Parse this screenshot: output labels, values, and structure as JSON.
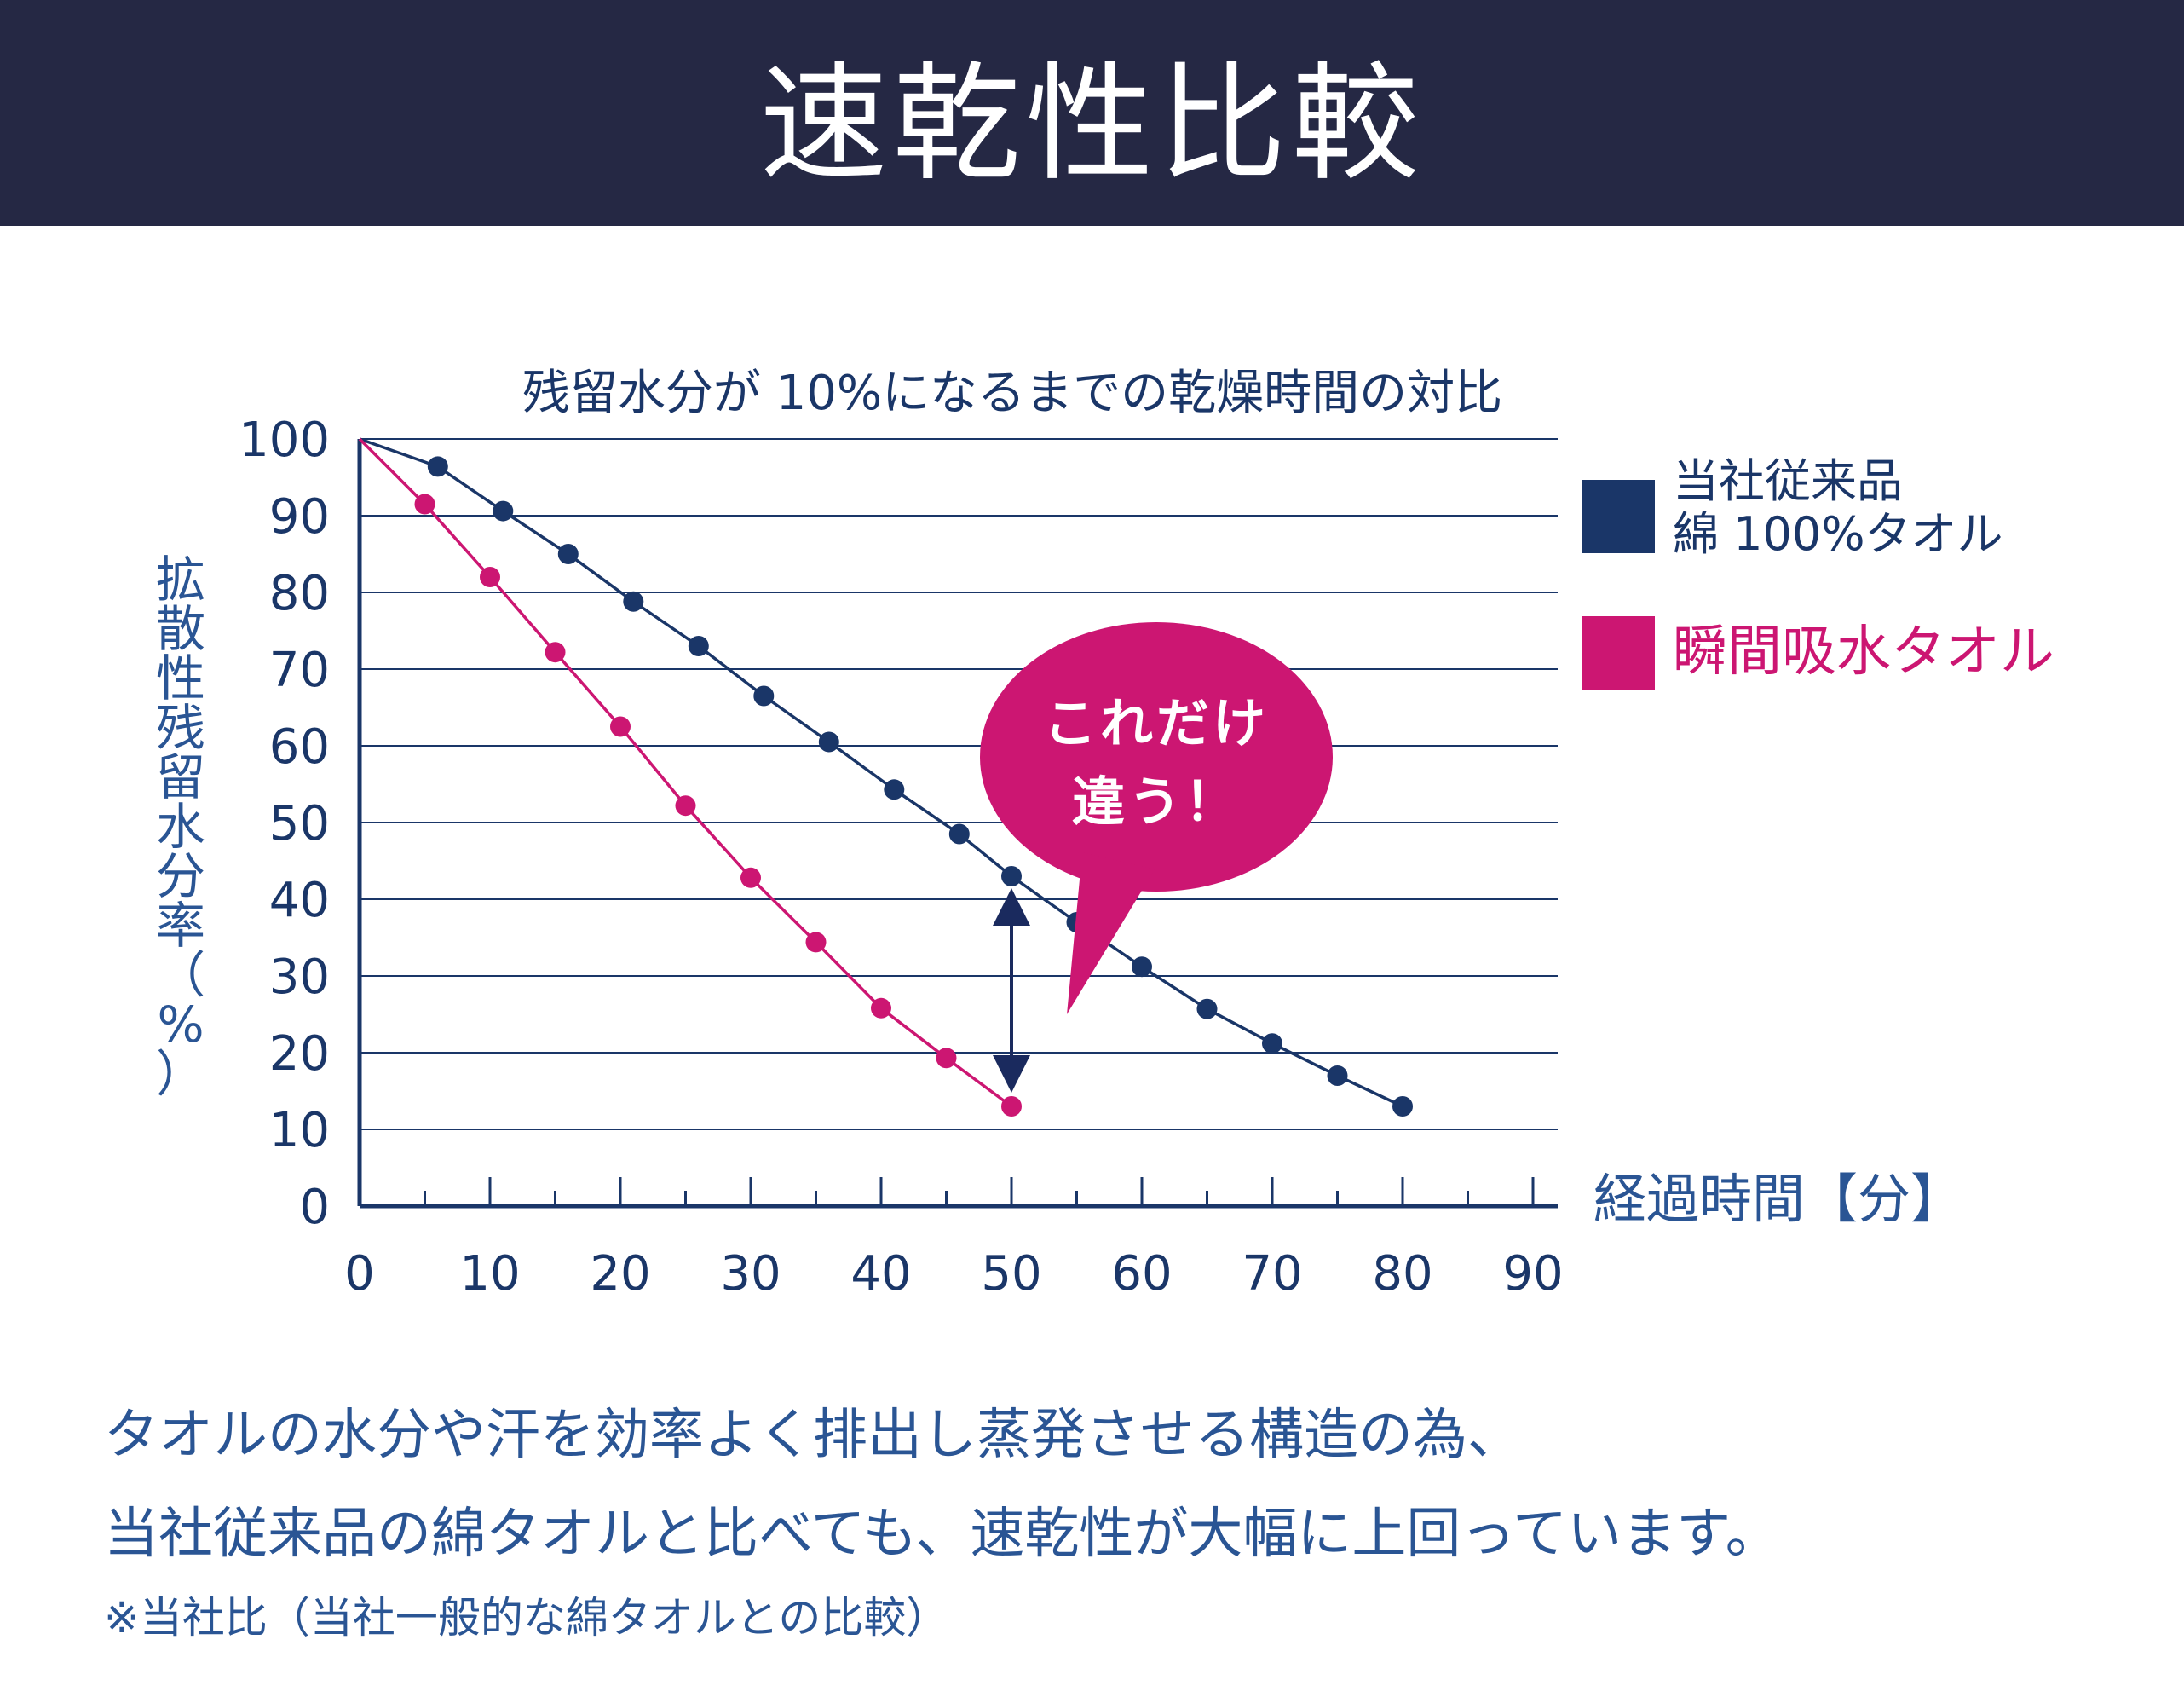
{
  "header": {
    "title": "速乾性比較"
  },
  "chart_data": {
    "type": "line",
    "title": "残留水分が 10%になるまでの乾燥時間の対比",
    "xlabel": "経過時間【分】",
    "ylabel": "拡散性残留水分率（%）",
    "xlim": [
      0,
      90
    ],
    "ylim": [
      0,
      100
    ],
    "x_ticks": [
      0,
      10,
      20,
      30,
      40,
      50,
      60,
      70,
      80,
      90
    ],
    "y_ticks": [
      0,
      10,
      20,
      30,
      40,
      50,
      60,
      70,
      80,
      90,
      100
    ],
    "grid": true,
    "legend_position": "right",
    "series": [
      {
        "name": "当社従来品 綿 100%タオル",
        "legend_lines": [
          "当社従来品",
          "綿 100%タオル"
        ],
        "color": "#1a3668",
        "x": [
          0,
          6,
          11,
          16,
          21,
          26,
          31,
          36,
          41,
          46,
          50,
          55,
          60,
          65,
          70,
          75,
          80
        ],
        "y": [
          100,
          96.4,
          90.6,
          85,
          78.8,
          73,
          66.5,
          60.5,
          54.3,
          48.5,
          43,
          37,
          31.2,
          25.7,
          21.2,
          17,
          13
        ]
      },
      {
        "name": "瞬間吸水タオル",
        "legend_lines": [
          "瞬間吸水タオル"
        ],
        "color": "#cc1672",
        "x": [
          0,
          5,
          10,
          15,
          20,
          25,
          30,
          35,
          40,
          45,
          50
        ],
        "y": [
          100,
          91.5,
          82,
          72.2,
          62.5,
          52.2,
          42.8,
          34.4,
          25.8,
          19.3,
          13
        ]
      }
    ],
    "annotation": {
      "text_lines": [
        "これだけ",
        "違う！"
      ],
      "color": "#cc1672",
      "arrow_x": 50,
      "arrow_from": 43,
      "arrow_to": 13
    }
  },
  "description": {
    "line1": "タオルの水分や汗を効率よく排出し蒸発させる構造の為、",
    "line2": "当社従来品の綿タオルと比べても、速乾性が大幅に上回っています。",
    "note": "※当社比（当社一般的な綿タオルとの比較）"
  }
}
